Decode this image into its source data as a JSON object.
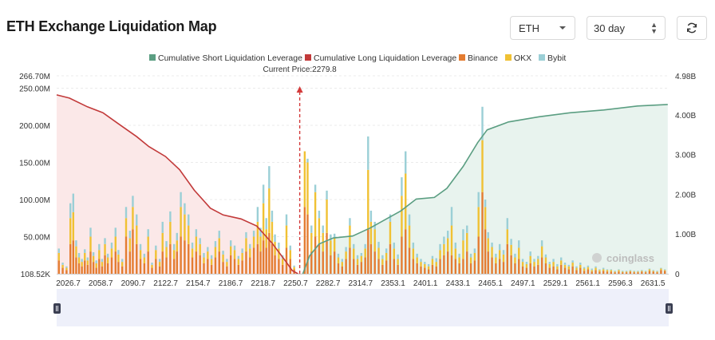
{
  "header": {
    "title": "ETH Exchange Liquidation Map"
  },
  "controls": {
    "symbol": "ETH",
    "period": "30 day",
    "refresh_icon": "refresh-icon"
  },
  "watermark": "coinglass",
  "chart_data": {
    "type": "bar",
    "current_price_label": "Current Price:2279.8",
    "current_price": 2279.8,
    "legend": [
      {
        "name": "Cumulative Short Liquidation Leverage",
        "color": "#5b9e82"
      },
      {
        "name": "Cumulative Long Liquidation Leverage",
        "color": "#c23a3a"
      },
      {
        "name": "Binance",
        "color": "#e47c31"
      },
      {
        "name": "OKX",
        "color": "#f0c133"
      },
      {
        "name": "Bybit",
        "color": "#9bcfd6"
      }
    ],
    "legend_position": "top-center",
    "x_ticks": [
      "2026.7",
      "2058.7",
      "2090.7",
      "2122.7",
      "2154.7",
      "2186.7",
      "2218.7",
      "2250.7",
      "2282.7",
      "2314.7",
      "2353.1",
      "2401.1",
      "2433.1",
      "2465.1",
      "2497.1",
      "2529.1",
      "2561.1",
      "2596.3",
      "2631.5"
    ],
    "y_left_ticks": [
      "108.52K",
      "50.00M",
      "100.00M",
      "150.00M",
      "200.00M",
      "250.00M",
      "266.70M"
    ],
    "y_left_range": [
      0,
      266.7
    ],
    "y_left_unit": "M",
    "y_right_ticks": [
      "0",
      "1.00B",
      "2.00B",
      "3.00B",
      "4.00B",
      "4.98B"
    ],
    "y_right_range": [
      0,
      4.98
    ],
    "y_right_unit": "B",
    "x_range": [
      2026.7,
      2664
    ],
    "grid": true,
    "cumulative_long": {
      "x": [
        2026.7,
        2040,
        2058.7,
        2075,
        2090.7,
        2110,
        2122.7,
        2140,
        2154.7,
        2170,
        2186.7,
        2200,
        2218.7,
        2235,
        2250.7,
        2265,
        2272,
        2278
      ],
      "y": [
        4.5,
        4.42,
        4.2,
        4.05,
        3.78,
        3.45,
        3.2,
        2.95,
        2.62,
        2.1,
        1.65,
        1.48,
        1.38,
        1.2,
        0.78,
        0.32,
        0.08,
        0.0
      ]
    },
    "cumulative_short": {
      "x": [
        2283,
        2290,
        2300,
        2314.7,
        2335,
        2353.1,
        2370,
        2385,
        2401.1,
        2420,
        2433.1,
        2450,
        2465.1,
        2475,
        2497.1,
        2529.1,
        2561.1,
        2596.3,
        2631.5,
        2663
      ],
      "y": [
        0.0,
        0.45,
        0.75,
        0.9,
        0.95,
        1.15,
        1.38,
        1.58,
        1.88,
        1.92,
        2.15,
        2.7,
        3.3,
        3.62,
        3.82,
        3.95,
        4.05,
        4.12,
        4.22,
        4.26
      ]
    },
    "bars": [
      {
        "x": 2029,
        "binance": 18,
        "okx": 10,
        "bybit": 6
      },
      {
        "x": 2033,
        "binance": 8,
        "okx": 4,
        "bybit": 3
      },
      {
        "x": 2037,
        "binance": 5,
        "okx": 3,
        "bybit": 2
      },
      {
        "x": 2041,
        "binance": 40,
        "okx": 35,
        "bybit": 20
      },
      {
        "x": 2044,
        "binance": 45,
        "okx": 38,
        "bybit": 25
      },
      {
        "x": 2047,
        "binance": 22,
        "okx": 15,
        "bybit": 8
      },
      {
        "x": 2050,
        "binance": 14,
        "okx": 8,
        "bybit": 6
      },
      {
        "x": 2053,
        "binance": 10,
        "okx": 6,
        "bybit": 4
      },
      {
        "x": 2056,
        "binance": 18,
        "okx": 10,
        "bybit": 5
      },
      {
        "x": 2059,
        "binance": 12,
        "okx": 6,
        "bybit": 4
      },
      {
        "x": 2062,
        "binance": 30,
        "okx": 20,
        "bybit": 12
      },
      {
        "x": 2065,
        "binance": 16,
        "okx": 8,
        "bybit": 5
      },
      {
        "x": 2068,
        "binance": 8,
        "okx": 6,
        "bybit": 4
      },
      {
        "x": 2071,
        "binance": 20,
        "okx": 12,
        "bybit": 8
      },
      {
        "x": 2074,
        "binance": 10,
        "okx": 6,
        "bybit": 4
      },
      {
        "x": 2077,
        "binance": 25,
        "okx": 15,
        "bybit": 8
      },
      {
        "x": 2080,
        "binance": 14,
        "okx": 8,
        "bybit": 5
      },
      {
        "x": 2084,
        "binance": 22,
        "okx": 12,
        "bybit": 8
      },
      {
        "x": 2088,
        "binance": 30,
        "okx": 20,
        "bybit": 12
      },
      {
        "x": 2091,
        "binance": 16,
        "okx": 10,
        "bybit": 6
      },
      {
        "x": 2095,
        "binance": 10,
        "okx": 6,
        "bybit": 4
      },
      {
        "x": 2099,
        "binance": 50,
        "okx": 25,
        "bybit": 15
      },
      {
        "x": 2103,
        "binance": 30,
        "okx": 18,
        "bybit": 10
      },
      {
        "x": 2106,
        "binance": 60,
        "okx": 30,
        "bybit": 15
      },
      {
        "x": 2110,
        "binance": 40,
        "okx": 25,
        "bybit": 15
      },
      {
        "x": 2114,
        "binance": 20,
        "okx": 12,
        "bybit": 8
      },
      {
        "x": 2118,
        "binance": 14,
        "okx": 8,
        "bybit": 5
      },
      {
        "x": 2122,
        "binance": 30,
        "okx": 20,
        "bybit": 10
      },
      {
        "x": 2126,
        "binance": 8,
        "okx": 4,
        "bybit": 3
      },
      {
        "x": 2130,
        "binance": 20,
        "okx": 12,
        "bybit": 6
      },
      {
        "x": 2134,
        "binance": 10,
        "okx": 6,
        "bybit": 4
      },
      {
        "x": 2137,
        "binance": 30,
        "okx": 25,
        "bybit": 15
      },
      {
        "x": 2141,
        "binance": 22,
        "okx": 14,
        "bybit": 8
      },
      {
        "x": 2145,
        "binance": 40,
        "okx": 30,
        "bybit": 14
      },
      {
        "x": 2149,
        "binance": 20,
        "okx": 12,
        "bybit": 8
      },
      {
        "x": 2152,
        "binance": 30,
        "okx": 15,
        "bybit": 10
      },
      {
        "x": 2156,
        "binance": 50,
        "okx": 40,
        "bybit": 20
      },
      {
        "x": 2160,
        "binance": 45,
        "okx": 35,
        "bybit": 15
      },
      {
        "x": 2164,
        "binance": 40,
        "okx": 25,
        "bybit": 15
      },
      {
        "x": 2168,
        "binance": 22,
        "okx": 12,
        "bybit": 8
      },
      {
        "x": 2172,
        "binance": 30,
        "okx": 20,
        "bybit": 10
      },
      {
        "x": 2176,
        "binance": 25,
        "okx": 15,
        "bybit": 8
      },
      {
        "x": 2180,
        "binance": 14,
        "okx": 8,
        "bybit": 6
      },
      {
        "x": 2184,
        "binance": 20,
        "okx": 10,
        "bybit": 6
      },
      {
        "x": 2188,
        "binance": 12,
        "okx": 8,
        "bybit": 5
      },
      {
        "x": 2192,
        "binance": 22,
        "okx": 14,
        "bybit": 8
      },
      {
        "x": 2196,
        "binance": 30,
        "okx": 18,
        "bybit": 10
      },
      {
        "x": 2200,
        "binance": 16,
        "okx": 10,
        "bybit": 5
      },
      {
        "x": 2204,
        "binance": 10,
        "okx": 6,
        "bybit": 4
      },
      {
        "x": 2208,
        "binance": 25,
        "okx": 12,
        "bybit": 8
      },
      {
        "x": 2212,
        "binance": 20,
        "okx": 12,
        "bybit": 6
      },
      {
        "x": 2216,
        "binance": 12,
        "okx": 8,
        "bybit": 4
      },
      {
        "x": 2220,
        "binance": 18,
        "okx": 10,
        "bybit": 6
      },
      {
        "x": 2224,
        "binance": 30,
        "okx": 18,
        "bybit": 8
      },
      {
        "x": 2228,
        "binance": 22,
        "okx": 12,
        "bybit": 6
      },
      {
        "x": 2232,
        "binance": 35,
        "okx": 15,
        "bybit": 8
      },
      {
        "x": 2236,
        "binance": 40,
        "okx": 30,
        "bybit": 20
      },
      {
        "x": 2239,
        "binance": 30,
        "okx": 20,
        "bybit": 12
      },
      {
        "x": 2242,
        "binance": 45,
        "okx": 50,
        "bybit": 25
      },
      {
        "x": 2245,
        "binance": 35,
        "okx": 25,
        "bybit": 15
      },
      {
        "x": 2248,
        "binance": 55,
        "okx": 60,
        "bybit": 30
      },
      {
        "x": 2251,
        "binance": 40,
        "okx": 30,
        "bybit": 15
      },
      {
        "x": 2254,
        "binance": 25,
        "okx": 18,
        "bybit": 10
      },
      {
        "x": 2258,
        "binance": 20,
        "okx": 14,
        "bybit": 8
      },
      {
        "x": 2262,
        "binance": 12,
        "okx": 8,
        "bybit": 5
      },
      {
        "x": 2266,
        "binance": 35,
        "okx": 30,
        "bybit": 15
      },
      {
        "x": 2270,
        "binance": 20,
        "okx": 12,
        "bybit": 6
      },
      {
        "x": 2274,
        "binance": 6,
        "okx": 3,
        "bybit": 2
      },
      {
        "x": 2285,
        "binance": 90,
        "okx": 75,
        "bybit": 0
      },
      {
        "x": 2288,
        "binance": 80,
        "okx": 70,
        "bybit": 5
      },
      {
        "x": 2292,
        "binance": 30,
        "okx": 25,
        "bybit": 10
      },
      {
        "x": 2296,
        "binance": 50,
        "okx": 60,
        "bybit": 10
      },
      {
        "x": 2300,
        "binance": 40,
        "okx": 35,
        "bybit": 10
      },
      {
        "x": 2304,
        "binance": 30,
        "okx": 25,
        "bybit": 10
      },
      {
        "x": 2308,
        "binance": 55,
        "okx": 45,
        "bybit": 12
      },
      {
        "x": 2312,
        "binance": 25,
        "okx": 20,
        "bybit": 8
      },
      {
        "x": 2316,
        "binance": 30,
        "okx": 18,
        "bybit": 6
      },
      {
        "x": 2320,
        "binance": 14,
        "okx": 8,
        "bybit": 5
      },
      {
        "x": 2324,
        "binance": 10,
        "okx": 6,
        "bybit": 4
      },
      {
        "x": 2328,
        "binance": 20,
        "okx": 10,
        "bybit": 6
      },
      {
        "x": 2332,
        "binance": 35,
        "okx": 30,
        "bybit": 10
      },
      {
        "x": 2336,
        "binance": 20,
        "okx": 14,
        "bybit": 6
      },
      {
        "x": 2340,
        "binance": 12,
        "okx": 8,
        "bybit": 5
      },
      {
        "x": 2344,
        "binance": 16,
        "okx": 8,
        "bybit": 4
      },
      {
        "x": 2348,
        "binance": 22,
        "okx": 12,
        "bybit": 6
      },
      {
        "x": 2351,
        "binance": 60,
        "okx": 80,
        "bybit": 45
      },
      {
        "x": 2354,
        "binance": 40,
        "okx": 30,
        "bybit": 15
      },
      {
        "x": 2358,
        "binance": 30,
        "okx": 30,
        "bybit": 10
      },
      {
        "x": 2362,
        "binance": 20,
        "okx": 15,
        "bybit": 8
      },
      {
        "x": 2366,
        "binance": 12,
        "okx": 8,
        "bybit": 5
      },
      {
        "x": 2370,
        "binance": 18,
        "okx": 10,
        "bybit": 6
      },
      {
        "x": 2374,
        "binance": 40,
        "okx": 30,
        "bybit": 10
      },
      {
        "x": 2378,
        "binance": 20,
        "okx": 14,
        "bybit": 8
      },
      {
        "x": 2382,
        "binance": 12,
        "okx": 8,
        "bybit": 6
      },
      {
        "x": 2386,
        "binance": 50,
        "okx": 55,
        "bybit": 25
      },
      {
        "x": 2390,
        "binance": 60,
        "okx": 75,
        "bybit": 30
      },
      {
        "x": 2394,
        "binance": 35,
        "okx": 30,
        "bybit": 15
      },
      {
        "x": 2398,
        "binance": 20,
        "okx": 14,
        "bybit": 8
      },
      {
        "x": 2402,
        "binance": 14,
        "okx": 8,
        "bybit": 5
      },
      {
        "x": 2406,
        "binance": 10,
        "okx": 6,
        "bybit": 4
      },
      {
        "x": 2410,
        "binance": 8,
        "okx": 5,
        "bybit": 3
      },
      {
        "x": 2414,
        "binance": 6,
        "okx": 4,
        "bybit": 3
      },
      {
        "x": 2418,
        "binance": 12,
        "okx": 8,
        "bybit": 4
      },
      {
        "x": 2422,
        "binance": 10,
        "okx": 6,
        "bybit": 5
      },
      {
        "x": 2426,
        "binance": 20,
        "okx": 12,
        "bybit": 8
      },
      {
        "x": 2430,
        "binance": 25,
        "okx": 15,
        "bybit": 10
      },
      {
        "x": 2434,
        "binance": 30,
        "okx": 18,
        "bybit": 10
      },
      {
        "x": 2438,
        "binance": 25,
        "okx": 40,
        "bybit": 25
      },
      {
        "x": 2442,
        "binance": 20,
        "okx": 14,
        "bybit": 8
      },
      {
        "x": 2446,
        "binance": 14,
        "okx": 8,
        "bybit": 5
      },
      {
        "x": 2450,
        "binance": 20,
        "okx": 25,
        "bybit": 15
      },
      {
        "x": 2454,
        "binance": 30,
        "okx": 25,
        "bybit": 10
      },
      {
        "x": 2458,
        "binance": 14,
        "okx": 8,
        "bybit": 5
      },
      {
        "x": 2462,
        "binance": 18,
        "okx": 10,
        "bybit": 6
      },
      {
        "x": 2466,
        "binance": 50,
        "okx": 40,
        "bybit": 20
      },
      {
        "x": 2470,
        "binance": 110,
        "okx": 70,
        "bybit": 45
      },
      {
        "x": 2473,
        "binance": 60,
        "okx": 30,
        "bybit": 10
      },
      {
        "x": 2476,
        "binance": 30,
        "okx": 18,
        "bybit": 8
      },
      {
        "x": 2480,
        "binance": 22,
        "okx": 14,
        "bybit": 6
      },
      {
        "x": 2484,
        "binance": 14,
        "okx": 8,
        "bybit": 5
      },
      {
        "x": 2488,
        "binance": 20,
        "okx": 12,
        "bybit": 8
      },
      {
        "x": 2492,
        "binance": 16,
        "okx": 10,
        "bybit": 6
      },
      {
        "x": 2496,
        "binance": 40,
        "okx": 20,
        "bybit": 15
      },
      {
        "x": 2500,
        "binance": 25,
        "okx": 14,
        "bybit": 8
      },
      {
        "x": 2504,
        "binance": 14,
        "okx": 8,
        "bybit": 5
      },
      {
        "x": 2508,
        "binance": 20,
        "okx": 15,
        "bybit": 10
      },
      {
        "x": 2512,
        "binance": 10,
        "okx": 6,
        "bybit": 4
      },
      {
        "x": 2516,
        "binance": 8,
        "okx": 5,
        "bybit": 3
      },
      {
        "x": 2520,
        "binance": 14,
        "okx": 10,
        "bybit": 6
      },
      {
        "x": 2524,
        "binance": 10,
        "okx": 6,
        "bybit": 4
      },
      {
        "x": 2528,
        "binance": 12,
        "okx": 8,
        "bybit": 4
      },
      {
        "x": 2532,
        "binance": 22,
        "okx": 15,
        "bybit": 8
      },
      {
        "x": 2536,
        "binance": 14,
        "okx": 8,
        "bybit": 4
      },
      {
        "x": 2540,
        "binance": 8,
        "okx": 5,
        "bybit": 3
      },
      {
        "x": 2544,
        "binance": 10,
        "okx": 6,
        "bybit": 4
      },
      {
        "x": 2548,
        "binance": 6,
        "okx": 4,
        "bybit": 3
      },
      {
        "x": 2552,
        "binance": 12,
        "okx": 6,
        "bybit": 4
      },
      {
        "x": 2556,
        "binance": 8,
        "okx": 4,
        "bybit": 3
      },
      {
        "x": 2560,
        "binance": 6,
        "okx": 4,
        "bybit": 2
      },
      {
        "x": 2564,
        "binance": 10,
        "okx": 5,
        "bybit": 3
      },
      {
        "x": 2568,
        "binance": 5,
        "okx": 3,
        "bybit": 2
      },
      {
        "x": 2572,
        "binance": 8,
        "okx": 4,
        "bybit": 3
      },
      {
        "x": 2576,
        "binance": 4,
        "okx": 3,
        "bybit": 2
      },
      {
        "x": 2580,
        "binance": 6,
        "okx": 3,
        "bybit": 2
      },
      {
        "x": 2584,
        "binance": 3,
        "okx": 2,
        "bybit": 2
      },
      {
        "x": 2588,
        "binance": 5,
        "okx": 3,
        "bybit": 2
      },
      {
        "x": 2592,
        "binance": 3,
        "okx": 2,
        "bybit": 1
      },
      {
        "x": 2596,
        "binance": 4,
        "okx": 2,
        "bybit": 2
      },
      {
        "x": 2600,
        "binance": 3,
        "okx": 2,
        "bybit": 1
      },
      {
        "x": 2604,
        "binance": 3,
        "okx": 2,
        "bybit": 1
      },
      {
        "x": 2608,
        "binance": 2,
        "okx": 1,
        "bybit": 1
      },
      {
        "x": 2612,
        "binance": 3,
        "okx": 2,
        "bybit": 1
      },
      {
        "x": 2616,
        "binance": 2,
        "okx": 1,
        "bybit": 1
      },
      {
        "x": 2620,
        "binance": 2,
        "okx": 1,
        "bybit": 1
      },
      {
        "x": 2624,
        "binance": 3,
        "okx": 1,
        "bybit": 1
      },
      {
        "x": 2628,
        "binance": 2,
        "okx": 1,
        "bybit": 1
      },
      {
        "x": 2632,
        "binance": 2,
        "okx": 1,
        "bybit": 1
      },
      {
        "x": 2636,
        "binance": 3,
        "okx": 1,
        "bybit": 1
      },
      {
        "x": 2640,
        "binance": 2,
        "okx": 1,
        "bybit": 1
      },
      {
        "x": 2644,
        "binance": 4,
        "okx": 2,
        "bybit": 1
      },
      {
        "x": 2648,
        "binance": 3,
        "okx": 1,
        "bybit": 1
      },
      {
        "x": 2652,
        "binance": 2,
        "okx": 1,
        "bybit": 1
      },
      {
        "x": 2656,
        "binance": 5,
        "okx": 2,
        "bybit": 1
      },
      {
        "x": 2660,
        "binance": 4,
        "okx": 1,
        "bybit": 1
      }
    ]
  }
}
